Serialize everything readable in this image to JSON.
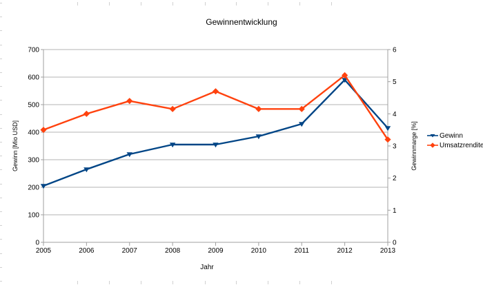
{
  "chart_data": {
    "type": "line",
    "title": "Gewinnentwicklung",
    "xlabel": "Jahr",
    "x": [
      "2005",
      "2006",
      "2007",
      "2008",
      "2009",
      "2010",
      "2011",
      "2012",
      "2013"
    ],
    "series": [
      {
        "name": "Gewinn",
        "axis": "left",
        "color": "#004586",
        "marker": "triangle-down",
        "values": [
          205,
          265,
          320,
          355,
          355,
          385,
          430,
          590,
          415
        ]
      },
      {
        "name": "Umsatzrendite",
        "axis": "right",
        "color": "#ff420e",
        "marker": "diamond",
        "values": [
          3.5,
          4.0,
          4.4,
          4.15,
          4.7,
          4.15,
          4.15,
          5.2,
          3.2
        ]
      }
    ],
    "left_axis": {
      "label": "Gewinn [Mio USD]",
      "min": 0,
      "max": 700,
      "step": 100
    },
    "right_axis": {
      "label": "Gewinnmarge [%]",
      "min": 0,
      "max": 6,
      "step": 1
    },
    "grid": "horizontal",
    "legend_position": "right",
    "colors": {
      "gridline": "#b3b3b3",
      "axis_line": "#9f9f9f",
      "text": "#000000",
      "background": "#ffffff",
      "cell_border_stub": "#d0d0d0"
    }
  }
}
